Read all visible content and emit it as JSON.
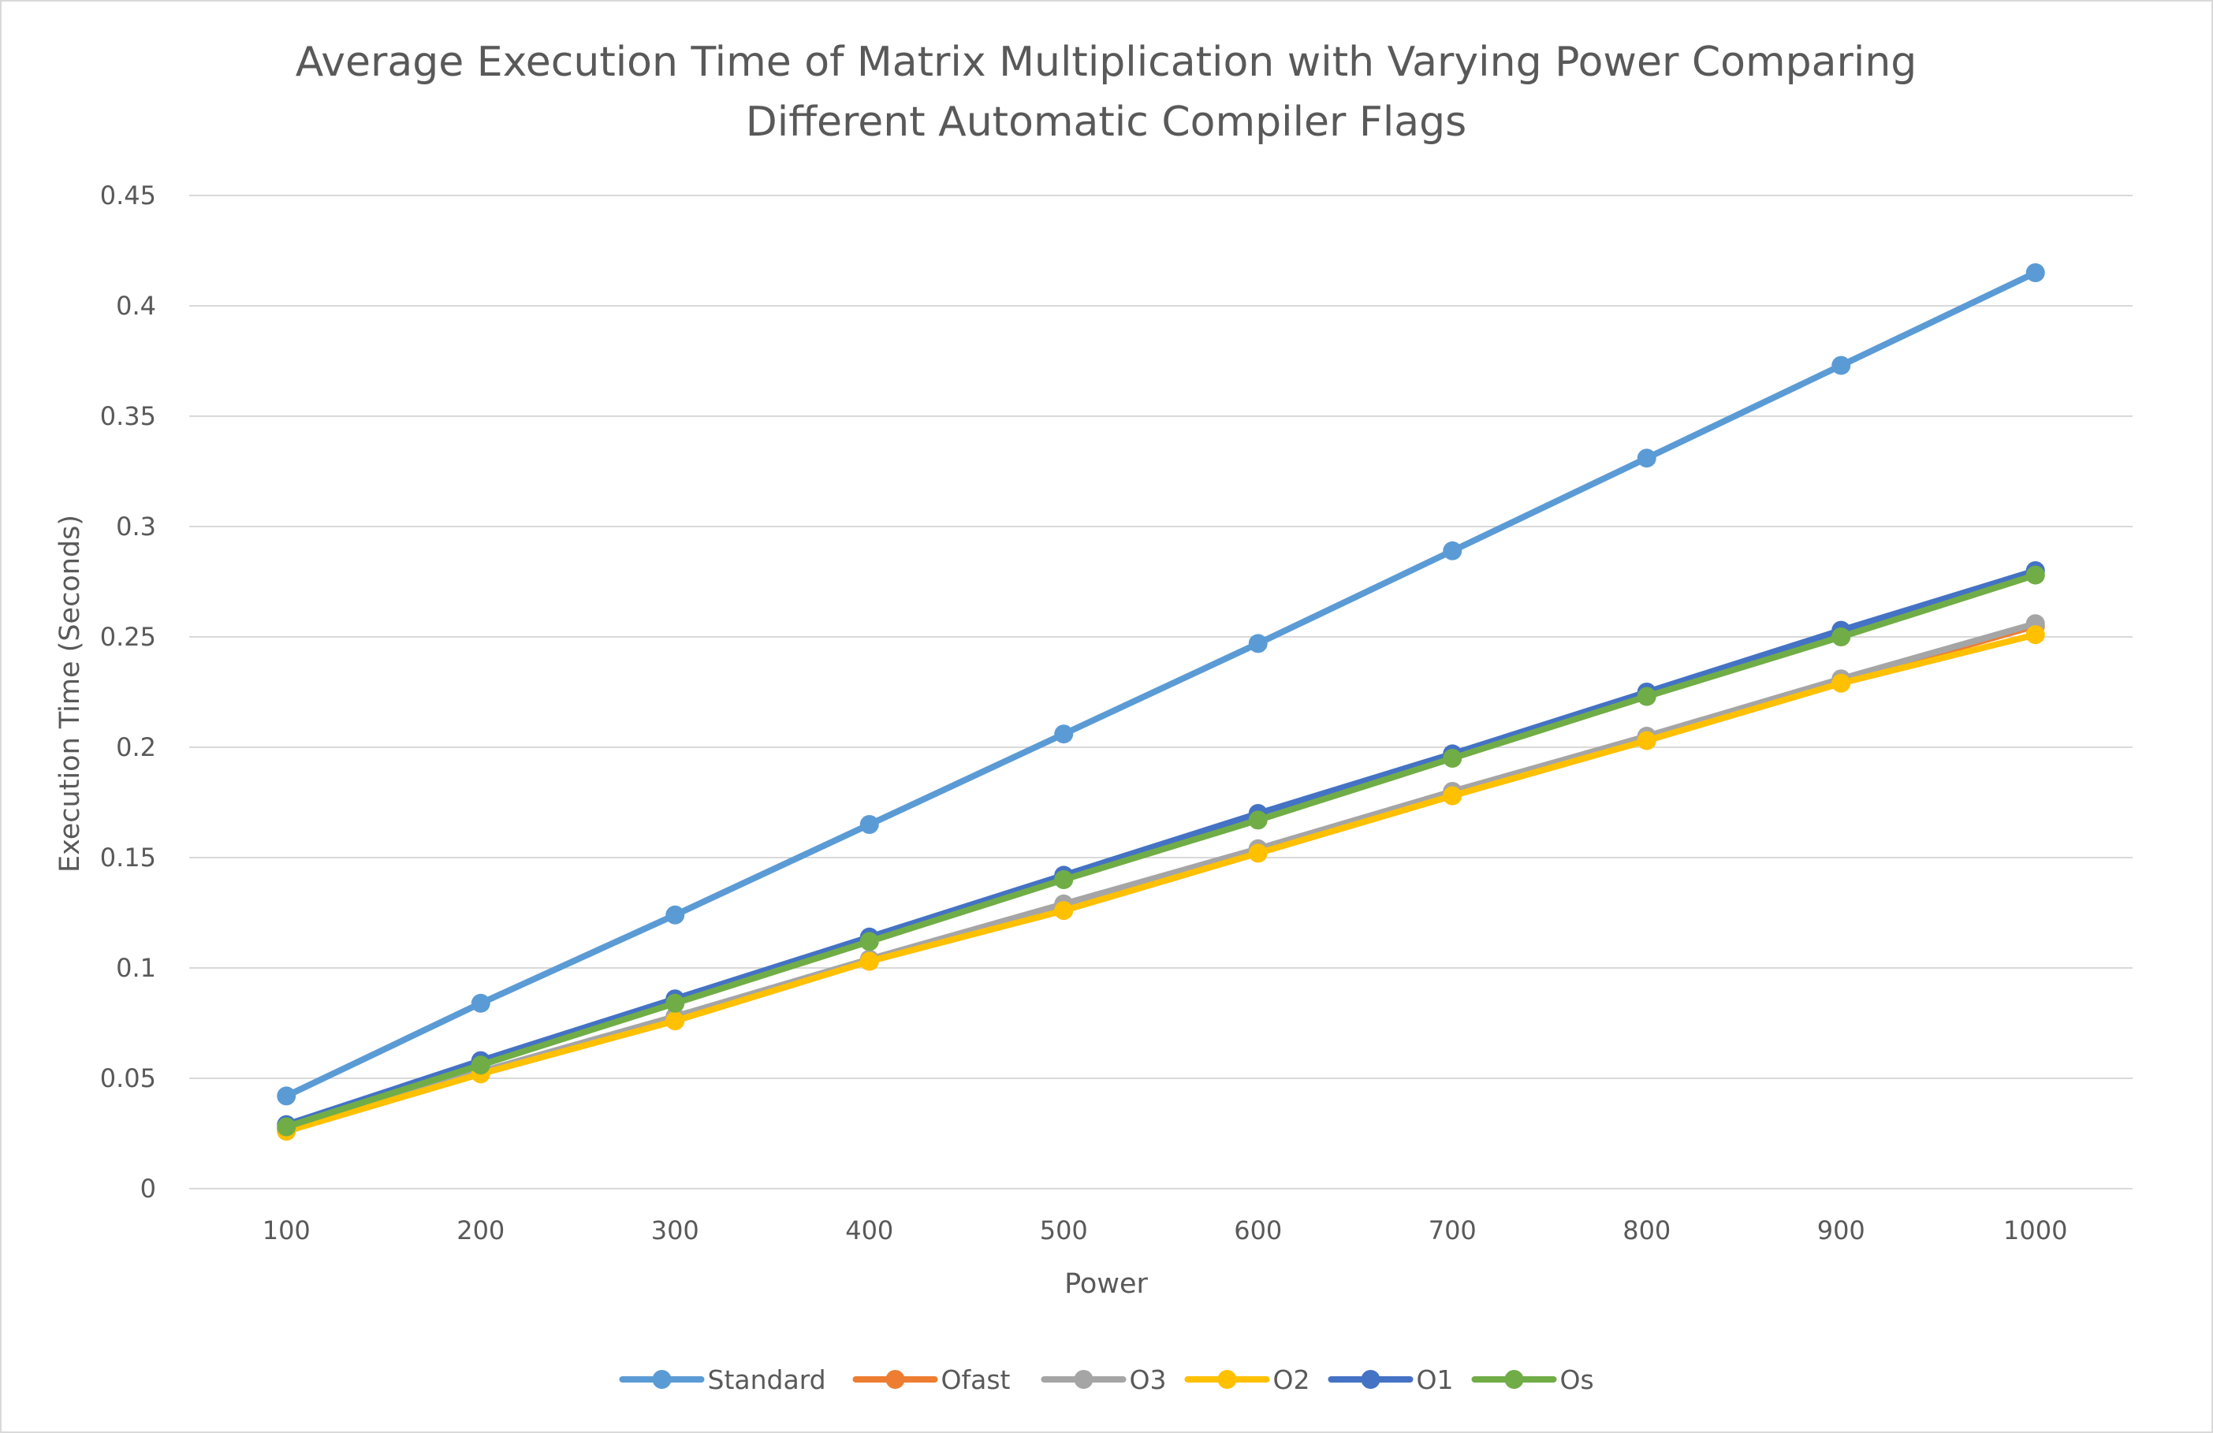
{
  "chart_data": {
    "type": "line",
    "title": "Average Execution Time of Matrix Multiplication with Varying Power Comparing Different Automatic Compiler Flags",
    "title_lines": [
      "Average Execution Time of Matrix Multiplication with Varying Power Comparing",
      "Different Automatic Compiler Flags"
    ],
    "xlabel": "Power",
    "ylabel": "Execution Time (Seconds)",
    "categories": [
      "100",
      "200",
      "300",
      "400",
      "500",
      "600",
      "700",
      "800",
      "900",
      "1000"
    ],
    "ylim": [
      0,
      0.45
    ],
    "yticks": [
      "0",
      "0.05",
      "0.1",
      "0.15",
      "0.2",
      "0.25",
      "0.3",
      "0.35",
      "0.4",
      "0.45"
    ],
    "grid": true,
    "legend_position": "bottom",
    "series": [
      {
        "name": "Standard",
        "color": "#5b9bd5",
        "values": [
          0.042,
          0.084,
          0.124,
          0.165,
          0.206,
          0.247,
          0.289,
          0.331,
          0.373,
          0.415
        ]
      },
      {
        "name": "Ofast",
        "color": "#ed7d31",
        "values": [
          0.027,
          0.053,
          0.077,
          0.103,
          0.128,
          0.153,
          0.179,
          0.204,
          0.23,
          0.255
        ]
      },
      {
        "name": "O3",
        "color": "#a5a5a5",
        "values": [
          0.027,
          0.053,
          0.078,
          0.104,
          0.129,
          0.154,
          0.18,
          0.205,
          0.231,
          0.256
        ]
      },
      {
        "name": "O2",
        "color": "#ffc000",
        "values": [
          0.026,
          0.052,
          0.076,
          0.103,
          0.126,
          0.152,
          0.178,
          0.203,
          0.229,
          0.251
        ]
      },
      {
        "name": "O1",
        "color": "#4472c4",
        "values": [
          0.029,
          0.058,
          0.086,
          0.114,
          0.142,
          0.17,
          0.197,
          0.225,
          0.253,
          0.28
        ]
      },
      {
        "name": "Os",
        "color": "#70ad47",
        "values": [
          0.028,
          0.056,
          0.084,
          0.112,
          0.14,
          0.167,
          0.195,
          0.223,
          0.25,
          0.278
        ]
      }
    ]
  }
}
